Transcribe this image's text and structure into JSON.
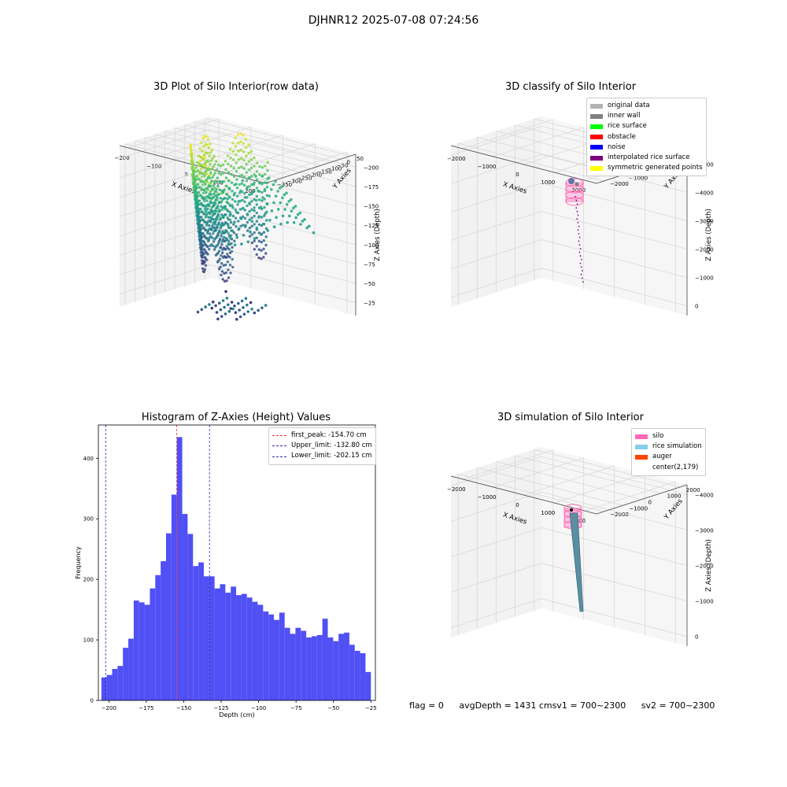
{
  "header": {
    "title": "DJHNR12 2025-07-08 07:24:56"
  },
  "colors": {
    "hist_bar": "#5050f5",
    "peak_line": "#e33",
    "limit_line": "#2a2aaa",
    "pane": "#ececec",
    "grid": "#d8d8d8"
  },
  "chart_data": [
    {
      "type": "scatter",
      "title": "3D Plot of Silo Interior(row data)",
      "xlabel": "X Axies",
      "ylabel": "Y Axies",
      "zlabel": "Z Axies (Depth)",
      "xticks": [
        "−200",
        "−100",
        "0",
        "100",
        "200"
      ],
      "yticks": [
        "50",
        "0",
        "−50",
        "−100",
        "−150",
        "−200",
        "−250",
        "−300",
        "−350"
      ],
      "zticks": [
        "−25",
        "−50",
        "−75",
        "−100",
        "−125",
        "−150",
        "−175",
        "−200"
      ],
      "colormap": "viridis",
      "grid": true
    },
    {
      "type": "scatter",
      "title": "3D classify of Silo Interior",
      "xlabel": "X Axies",
      "ylabel": "Y Axies",
      "zlabel": "Z Axies (Depth)",
      "xticks": [
        "−2000",
        "−1000",
        "0",
        "1000",
        "2000"
      ],
      "yticks": [
        "2000",
        "1000",
        "0",
        "−1000",
        "−2000"
      ],
      "zticks": [
        "0",
        "−1000",
        "−2000",
        "−3000",
        "−4000",
        "−5000"
      ],
      "legend_position": "top-right",
      "legend": [
        {
          "label": "original data",
          "color": "#b4b4b4"
        },
        {
          "label": "inner wall",
          "color": "#808080"
        },
        {
          "label": "rice surface",
          "color": "#00ff00"
        },
        {
          "label": "obstacle",
          "color": "#ff0000"
        },
        {
          "label": "noise",
          "color": "#0000ff"
        },
        {
          "label": "interpolated rice surface",
          "color": "#800080"
        },
        {
          "label": "symmetric generated points",
          "color": "#ffff00"
        }
      ],
      "grid": true
    },
    {
      "type": "bar",
      "title": "Histogram of Z-Axies (Height) Values",
      "xlabel": "Depth (cm)",
      "ylabel": "Frequency",
      "x_start": -205,
      "bin_width": 3.6,
      "values": [
        38,
        42,
        52,
        57,
        87,
        102,
        165,
        162,
        158,
        185,
        207,
        230,
        276,
        340,
        435,
        308,
        275,
        222,
        228,
        205,
        205,
        185,
        192,
        178,
        188,
        174,
        176,
        170,
        163,
        158,
        147,
        142,
        133,
        145,
        120,
        110,
        120,
        115,
        104,
        106,
        108,
        135,
        104,
        98,
        110,
        112,
        92,
        82,
        78,
        47
      ],
      "xlim": [
        -207,
        -22
      ],
      "ylim": [
        0,
        455
      ],
      "xticks": [
        -200,
        -175,
        -150,
        -125,
        -100,
        -75,
        -50,
        -25
      ],
      "yticks": [
        0,
        100,
        200,
        300,
        400
      ],
      "vlines": [
        {
          "label": "first_peak: -154.70 cm",
          "x": -154.7,
          "color": "#e33"
        },
        {
          "label": "Upper_limit: -132.80 cm",
          "x": -132.8,
          "color": "#2a2aaa"
        },
        {
          "label": "Lower_limit: -202.15 cm",
          "x": -202.15,
          "color": "#2a2aaa"
        }
      ],
      "legend_position": "top-right",
      "grid": false
    },
    {
      "type": "scatter",
      "title": "3D simulation of Silo Interior",
      "xlabel": "X Axies",
      "ylabel": "Y Axies",
      "zlabel": "Z Axies (Depth)",
      "xticks": [
        "−2000",
        "−1000",
        "0",
        "1000",
        "2000"
      ],
      "yticks": [
        "2000",
        "1000",
        "0",
        "−1000",
        "−2000"
      ],
      "zticks": [
        "0",
        "−1000",
        "−2000",
        "−3000",
        "−4000"
      ],
      "legend_position": "top-right",
      "legend": [
        {
          "label": "silo",
          "color": "#ff69b4"
        },
        {
          "label": "rice simulation",
          "color": "#87ceeb"
        },
        {
          "label": "auger",
          "color": "#ff4500"
        },
        {
          "label": "center(2,179)",
          "color": "#ffffff"
        }
      ],
      "grid": true
    }
  ],
  "status": {
    "flag": "flag = 0",
    "avg_depth": "avgDepth = 1431 cm",
    "sv1": "sv1 = 700~2300",
    "sv2": "sv2 = 700~2300"
  }
}
